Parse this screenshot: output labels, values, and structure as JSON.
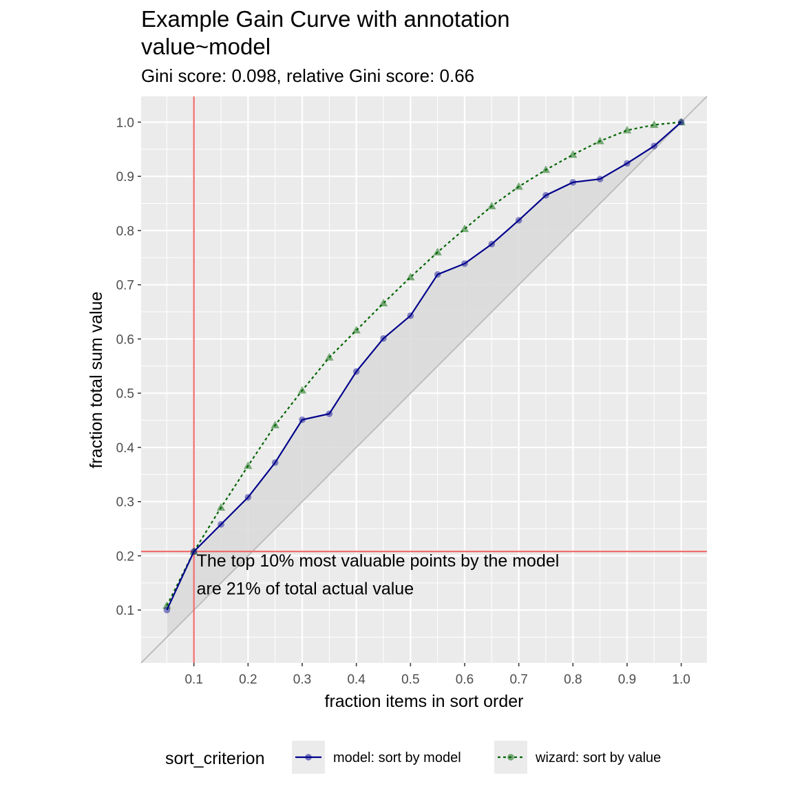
{
  "chart_data": {
    "type": "line",
    "title": [
      "Example Gain Curve with annotation",
      "value~model"
    ],
    "subtitle": "Gini score: 0.098, relative Gini score: 0.66",
    "xlabel": "fraction items in sort order",
    "ylabel": "fraction total sum value",
    "xlim": [
      0.0025,
      1.0475
    ],
    "ylim": [
      0.0025,
      1.0475
    ],
    "x_ticks": [
      "0.1",
      "0.2",
      "0.3",
      "0.4",
      "0.5",
      "0.6",
      "0.7",
      "0.8",
      "0.9",
      "1.0"
    ],
    "y_ticks": [
      "0.1",
      "0.2",
      "0.3",
      "0.4",
      "0.5",
      "0.6",
      "0.7",
      "0.8",
      "0.9",
      "1.0"
    ],
    "grid": true,
    "x": [
      0.05,
      0.1,
      0.15,
      0.2,
      0.25,
      0.3,
      0.35,
      0.4,
      0.45,
      0.5,
      0.55,
      0.6,
      0.65,
      0.7,
      0.75,
      0.8,
      0.85,
      0.9,
      0.95,
      1.0
    ],
    "series": [
      {
        "name": "model: sort by model",
        "color": "#00008b",
        "linestyle": "solid",
        "marker": "circle",
        "values": [
          0.1,
          0.208,
          0.258,
          0.308,
          0.372,
          0.451,
          0.462,
          0.54,
          0.601,
          0.643,
          0.719,
          0.739,
          0.775,
          0.819,
          0.865,
          0.889,
          0.895,
          0.924,
          0.956,
          1.0
        ]
      },
      {
        "name": "wizard: sort by value",
        "color": "#006400",
        "linestyle": "dotted",
        "marker": "triangle",
        "values": [
          0.108,
          0.208,
          0.289,
          0.366,
          0.441,
          0.505,
          0.566,
          0.616,
          0.666,
          0.714,
          0.76,
          0.803,
          0.845,
          0.881,
          0.912,
          0.94,
          0.965,
          0.985,
          0.995,
          1.0
        ]
      }
    ],
    "diagonal": {
      "color": "#bdbdbd"
    },
    "fill_between": {
      "between": [
        "model: sort by model",
        "diagonal"
      ],
      "color": "#d9d9d9"
    },
    "reference_lines": {
      "color": "#f36c6c",
      "x": 0.1,
      "y": 0.208
    },
    "annotation": {
      "lines": [
        "The top 10% most valuable points by the model",
        "are 21% of total actual value"
      ],
      "x": 0.105,
      "y": [
        0.192,
        0.14
      ]
    },
    "legend": {
      "title": "sort_criterion",
      "position": "bottom",
      "items": [
        "model: sort by model",
        "wizard: sort by value"
      ]
    }
  }
}
